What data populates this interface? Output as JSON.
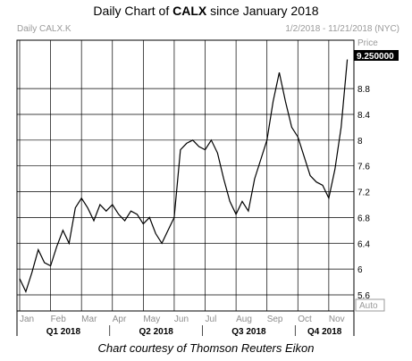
{
  "header": {
    "title_prefix": "Daily Chart of ",
    "title_ticker": "CALX",
    "title_suffix": " since January 2018",
    "symbol": "Daily CALX.K",
    "date_range": "1/2/2018 - 11/21/2018 (NYC)",
    "price_label": "Price",
    "scale_mode": "Auto"
  },
  "footer": {
    "caption": "Chart courtesy of Thomson Reuters Eikon"
  },
  "colors": {
    "line": "#000000",
    "grid": "#000000",
    "text_muted": "#9a9a9a"
  },
  "chart_data": {
    "type": "line",
    "title": "Daily Chart of CALX since January 2018",
    "last_price_label": "9.250000",
    "grid": true,
    "y_ticks": [
      "5.6",
      "6",
      "6.4",
      "6.8",
      "7.2",
      "7.6",
      "8",
      "8.4",
      "8.8"
    ],
    "ylim": [
      5.35,
      9.55
    ],
    "month_labels": [
      "Jan",
      "Feb",
      "Mar",
      "Apr",
      "May",
      "Jun",
      "Jul",
      "Aug",
      "Sep",
      "Oct",
      "Nov"
    ],
    "quarter_labels": [
      "Q1 2018",
      "Q2 2018",
      "Q3 2018",
      "Q4 2018"
    ],
    "series": [
      {
        "x": [
          0,
          0.2,
          0.4,
          0.6,
          0.8,
          1,
          1.2,
          1.4,
          1.6,
          1.8,
          2,
          2.2,
          2.4,
          2.6,
          2.8,
          3,
          3.2,
          3.4,
          3.6,
          3.8,
          4,
          4.2,
          4.4,
          4.6,
          4.8,
          5,
          5.2,
          5.4,
          5.6,
          5.8,
          6,
          6.2,
          6.4,
          6.6,
          6.8,
          7,
          7.2,
          7.4,
          7.6,
          7.8,
          8,
          8.2,
          8.4,
          8.6,
          8.8,
          9,
          9.2,
          9.4,
          9.6,
          9.8,
          10,
          10.2,
          10.4,
          10.6
        ],
        "y": [
          5.85,
          5.65,
          5.95,
          6.3,
          6.1,
          6.05,
          6.35,
          6.6,
          6.4,
          6.95,
          7.1,
          6.95,
          6.75,
          7.0,
          6.9,
          7.0,
          6.85,
          6.75,
          6.9,
          6.85,
          6.7,
          6.8,
          6.55,
          6.4,
          6.6,
          6.8,
          7.85,
          7.95,
          8.0,
          7.9,
          7.85,
          8.0,
          7.8,
          7.4,
          7.05,
          6.85,
          7.05,
          6.9,
          7.4,
          7.7,
          8.0,
          8.6,
          9.05,
          8.6,
          8.2,
          8.05,
          7.75,
          7.45,
          7.35,
          7.3,
          7.1,
          7.55,
          8.2,
          9.25
        ]
      }
    ]
  }
}
